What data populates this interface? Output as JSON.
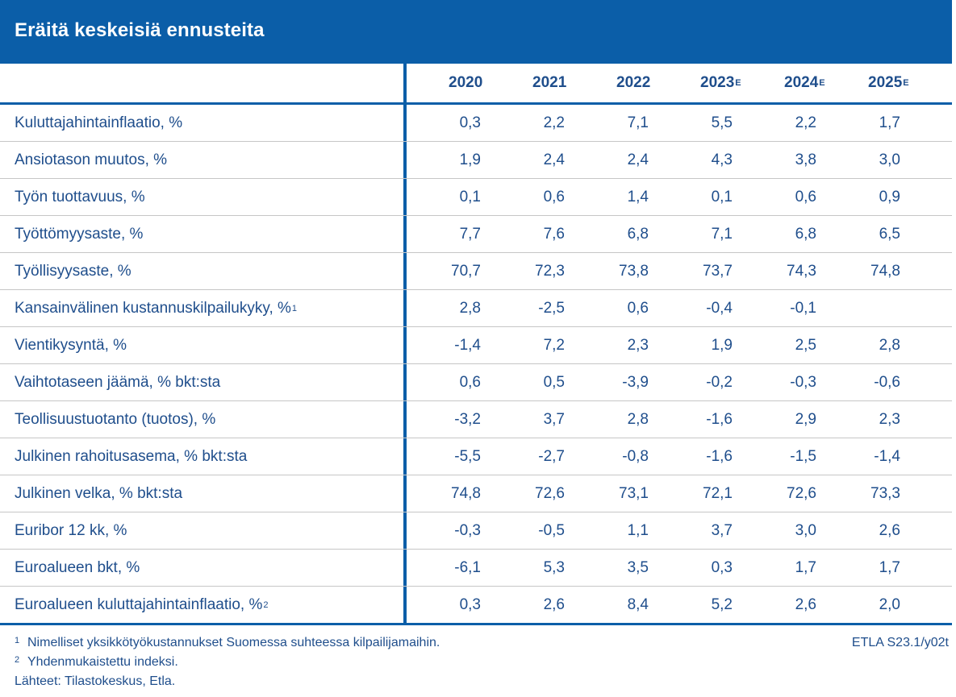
{
  "title": "Eräitä keskeisiä ennusteita",
  "years": [
    {
      "label": "2020",
      "mark": ""
    },
    {
      "label": "2021",
      "mark": ""
    },
    {
      "label": "2022",
      "mark": ""
    },
    {
      "label": "2023",
      "mark": "E"
    },
    {
      "label": "2024",
      "mark": "E"
    },
    {
      "label": "2025",
      "mark": "E"
    }
  ],
  "rows": [
    {
      "label": "Kuluttajahintainflaatio, %",
      "note": "",
      "values": [
        "0,3",
        "2,2",
        "7,1",
        "5,5",
        "2,2",
        "1,7"
      ]
    },
    {
      "label": "Ansiotason muutos, %",
      "note": "",
      "values": [
        "1,9",
        "2,4",
        "2,4",
        "4,3",
        "3,8",
        "3,0"
      ]
    },
    {
      "label": "Työn tuottavuus, %",
      "note": "",
      "values": [
        "0,1",
        "0,6",
        "1,4",
        "0,1",
        "0,6",
        "0,9"
      ]
    },
    {
      "label": "Työttömyysaste, %",
      "note": "",
      "values": [
        "7,7",
        "7,6",
        "6,8",
        "7,1",
        "6,8",
        "6,5"
      ]
    },
    {
      "label": "Työllisyysaste, %",
      "note": "",
      "values": [
        "70,7",
        "72,3",
        "73,8",
        "73,7",
        "74,3",
        "74,8"
      ]
    },
    {
      "label": "Kansainvälinen kustannuskilpailukyky, %",
      "note": "1",
      "values": [
        "2,8",
        "-2,5",
        "0,6",
        "-0,4",
        "-0,1",
        ""
      ]
    },
    {
      "label": "Vientikysyntä, %",
      "note": "",
      "values": [
        "-1,4",
        "7,2",
        "2,3",
        "1,9",
        "2,5",
        "2,8"
      ]
    },
    {
      "label": "Vaihtotaseen jäämä, % bkt:sta",
      "note": "",
      "values": [
        "0,6",
        "0,5",
        "-3,9",
        "-0,2",
        "-0,3",
        "-0,6"
      ]
    },
    {
      "label": "Teollisuustuotanto (tuotos), %",
      "note": "",
      "values": [
        "-3,2",
        "3,7",
        "2,8",
        "-1,6",
        "2,9",
        "2,3"
      ]
    },
    {
      "label": "Julkinen rahoitusasema, % bkt:sta",
      "note": "",
      "values": [
        "-5,5",
        "-2,7",
        "-0,8",
        "-1,6",
        "-1,5",
        "-1,4"
      ]
    },
    {
      "label": "Julkinen velka, % bkt:sta",
      "note": "",
      "values": [
        "74,8",
        "72,6",
        "73,1",
        "72,1",
        "72,6",
        "73,3"
      ]
    },
    {
      "label": "Euribor 12 kk, %",
      "note": "",
      "values": [
        "-0,3",
        "-0,5",
        "1,1",
        "3,7",
        "3,0",
        "2,6"
      ]
    },
    {
      "label": "Euroalueen bkt, %",
      "note": "",
      "values": [
        "-6,1",
        "5,3",
        "3,5",
        "0,3",
        "1,7",
        "1,7"
      ]
    },
    {
      "label": "Euroalueen kuluttajahintainflaatio, %",
      "note": "2",
      "values": [
        "0,3",
        "2,6",
        "8,4",
        "5,2",
        "2,6",
        "2,0"
      ]
    }
  ],
  "footnotes": [
    {
      "mark": "1",
      "text": "Nimelliset yksikkötyökustannukset Suomessa suhteessa kilpailijamaihin."
    },
    {
      "mark": "2",
      "text": "Yhdenmukaistettu indeksi."
    }
  ],
  "sources": "Lähteet: Tilastokeskus, Etla.",
  "source_code": "ETLA S23.1/y02t",
  "colors": {
    "header_bg": "#0b5ea8",
    "text": "#1f4e8c",
    "row_divider": "#c6c6c6"
  }
}
